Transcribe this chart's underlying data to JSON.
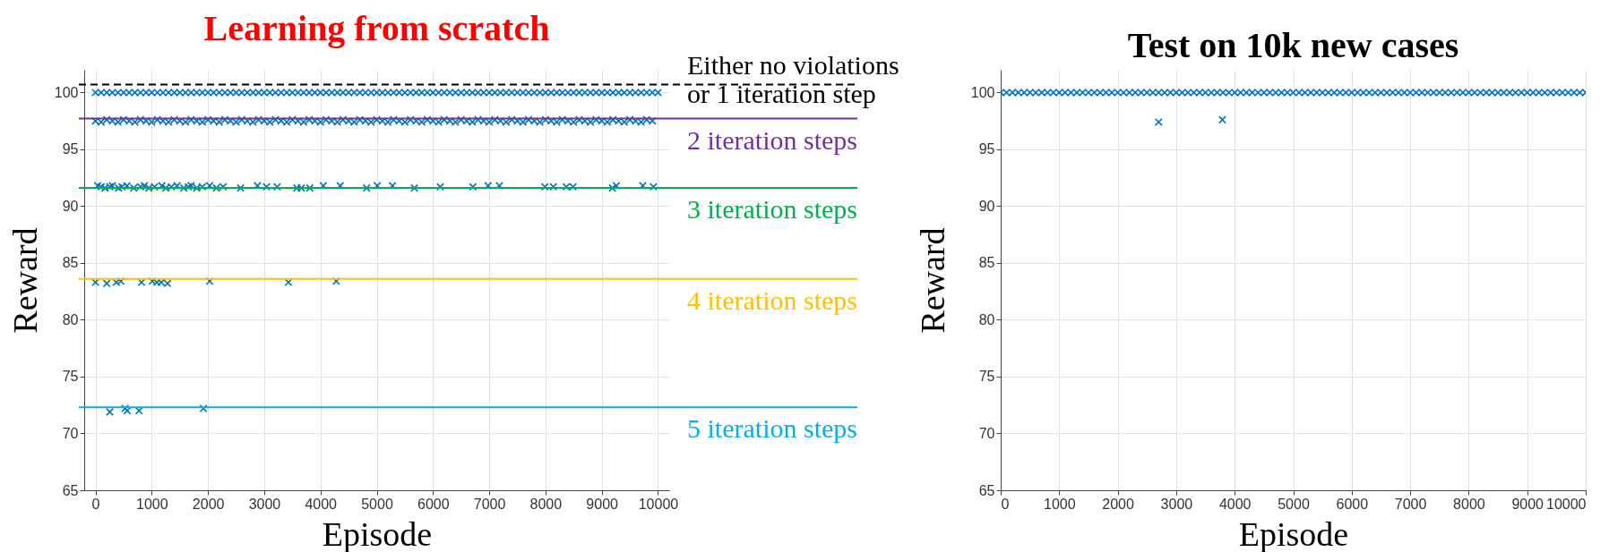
{
  "chart_data": [
    {
      "type": "scatter",
      "title": "Learning from scratch",
      "xlabel": "Episode",
      "ylabel": "Reward",
      "xlim": [
        -200,
        10200
      ],
      "ylim": [
        65,
        102
      ],
      "xticks": [
        0,
        1000,
        2000,
        3000,
        4000,
        5000,
        6000,
        7000,
        8000,
        9000,
        10000
      ],
      "yticks": [
        65,
        70,
        75,
        80,
        85,
        90,
        95,
        100
      ],
      "grid": true,
      "marker": "cross",
      "legend": false,
      "series": [
        {
          "color": "#0072bd",
          "x": [
            0,
            100,
            200,
            300,
            400,
            500,
            600,
            700,
            800,
            900,
            1000,
            1100,
            1200,
            1300,
            1400,
            1500,
            1600,
            1700,
            1800,
            1900,
            2000,
            2100,
            2200,
            2300,
            2400,
            2500,
            2600,
            2700,
            2800,
            2900,
            3000,
            3100,
            3200,
            3300,
            3400,
            3500,
            3600,
            3700,
            3800,
            3900,
            4000,
            4100,
            4200,
            4300,
            4400,
            4500,
            4600,
            4700,
            4800,
            4900,
            5000,
            5100,
            5200,
            5300,
            5400,
            5500,
            5600,
            5700,
            5800,
            5900,
            6000,
            6100,
            6200,
            6300,
            6400,
            6500,
            6600,
            6700,
            6800,
            6900,
            7000,
            7100,
            7200,
            7300,
            7400,
            7500,
            7600,
            7700,
            7800,
            7900,
            8000,
            8100,
            8200,
            8300,
            8400,
            8500,
            8600,
            8700,
            8800,
            8900,
            9000,
            9100,
            9200,
            9300,
            9400,
            9500,
            9600,
            9700,
            9800,
            9900,
            10000
          ],
          "values": [
            100,
            100,
            100,
            100,
            100,
            100,
            100,
            100,
            100,
            100,
            100,
            100,
            100,
            100,
            100,
            100,
            100,
            100,
            100,
            100,
            100,
            100,
            100,
            100,
            100,
            100,
            100,
            100,
            100,
            100,
            100,
            100,
            100,
            100,
            100,
            100,
            100,
            100,
            100,
            100,
            100,
            100,
            100,
            100,
            100,
            100,
            100,
            100,
            100,
            100,
            100,
            100,
            100,
            100,
            100,
            100,
            100,
            100,
            100,
            100,
            100,
            100,
            100,
            100,
            100,
            100,
            100,
            100,
            100,
            100,
            100,
            100,
            100,
            100,
            100,
            100,
            100,
            100,
            100,
            100,
            100,
            100,
            100,
            100,
            100,
            100,
            100,
            100,
            100,
            100,
            100,
            100,
            100,
            100,
            100,
            100,
            100,
            100,
            100,
            100,
            100
          ]
        },
        {
          "color": "#0072bd",
          "x": [
            0,
            100,
            200,
            300,
            400,
            500,
            600,
            700,
            800,
            900,
            1000,
            1100,
            1200,
            1300,
            1400,
            1500,
            1600,
            1700,
            1800,
            1900,
            2000,
            2100,
            2200,
            2300,
            2400,
            2500,
            2600,
            2700,
            2800,
            2900,
            3000,
            3100,
            3200,
            3300,
            3400,
            3500,
            3600,
            3700,
            3800,
            3900,
            4000,
            4100,
            4200,
            4300,
            4400,
            4500,
            4600,
            4700,
            4800,
            4900,
            5000,
            5100,
            5200,
            5300,
            5400,
            5500,
            5600,
            5700,
            5800,
            5900,
            6000,
            6100,
            6200,
            6300,
            6400,
            6500,
            6600,
            6700,
            6800,
            6900,
            7000,
            7100,
            7200,
            7300,
            7400,
            7500,
            7600,
            7700,
            7800,
            7900,
            8000,
            8100,
            8200,
            8300,
            8400,
            8500,
            8600,
            8700,
            8800,
            8900,
            9000,
            9100,
            9200,
            9300,
            9400,
            9500,
            9600,
            9700,
            9800,
            9900
          ],
          "values": [
            97.5,
            97.4,
            97.6,
            97.5,
            97.4,
            97.6,
            97.5,
            97.4,
            97.6,
            97.5,
            97.4,
            97.6,
            97.5,
            97.4,
            97.6,
            97.5,
            97.4,
            97.6,
            97.5,
            97.4,
            97.6,
            97.5,
            97.4,
            97.6,
            97.5,
            97.4,
            97.6,
            97.5,
            97.4,
            97.6,
            97.5,
            97.4,
            97.6,
            97.5,
            97.4,
            97.6,
            97.5,
            97.4,
            97.6,
            97.5,
            97.4,
            97.6,
            97.5,
            97.4,
            97.6,
            97.5,
            97.4,
            97.6,
            97.5,
            97.4,
            97.6,
            97.5,
            97.4,
            97.6,
            97.5,
            97.4,
            97.6,
            97.5,
            97.4,
            97.6,
            97.5,
            97.4,
            97.6,
            97.5,
            97.4,
            97.6,
            97.5,
            97.4,
            97.6,
            97.5,
            97.4,
            97.6,
            97.5,
            97.4,
            97.6,
            97.5,
            97.4,
            97.6,
            97.5,
            97.4,
            97.6,
            97.5,
            97.4,
            97.6,
            97.5,
            97.4,
            97.6,
            97.5,
            97.4,
            97.6,
            97.5,
            97.4,
            97.6,
            97.5,
            97.4,
            97.6,
            97.5,
            97.4,
            97.6,
            97.5
          ]
        },
        {
          "color": "#0072bd",
          "x": [
            40,
            100,
            170,
            255,
            300,
            410,
            470,
            560,
            680,
            800,
            870,
            950,
            1050,
            1180,
            1250,
            1350,
            1450,
            1570,
            1650,
            1700,
            1800,
            1900,
            2030,
            2150,
            2270,
            2580,
            2880,
            3040,
            3230,
            3580,
            3660,
            3810,
            4050,
            4350,
            4820,
            5010,
            5280,
            5670,
            6130,
            6710,
            6980,
            7180,
            7990,
            8140,
            8370,
            8490,
            9190,
            9260,
            9730,
            9920
          ],
          "values": [
            91.8,
            91.7,
            91.6,
            91.7,
            91.8,
            91.6,
            91.7,
            91.8,
            91.6,
            91.7,
            91.8,
            91.6,
            91.7,
            91.8,
            91.6,
            91.7,
            91.8,
            91.6,
            91.7,
            91.8,
            91.6,
            91.7,
            91.8,
            91.6,
            91.7,
            91.6,
            91.8,
            91.7,
            91.7,
            91.6,
            91.6,
            91.6,
            91.8,
            91.8,
            91.6,
            91.8,
            91.8,
            91.6,
            91.7,
            91.7,
            91.8,
            91.8,
            91.7,
            91.7,
            91.7,
            91.7,
            91.6,
            91.8,
            91.8,
            91.7
          ]
        },
        {
          "color": "#0072bd",
          "x": [
            0,
            200,
            370,
            450,
            820,
            1010,
            1090,
            1170,
            1280,
            2030,
            3430,
            4280
          ],
          "values": [
            83.3,
            83.2,
            83.3,
            83.4,
            83.3,
            83.4,
            83.3,
            83.3,
            83.2,
            83.4,
            83.3,
            83.4
          ]
        },
        {
          "color": "#0072bd",
          "x": [
            255,
            525,
            565,
            775,
            1920
          ],
          "values": [
            71.9,
            72.2,
            72.0,
            72.0,
            72.2
          ]
        }
      ],
      "ref_lines": [
        {
          "axis": "y",
          "value": 100.7,
          "label": "Either no violations\nor 1 iteration step",
          "color": "#000000",
          "line_style": "dashed"
        },
        {
          "axis": "y",
          "value": 97.7,
          "label": "2 iteration steps",
          "color": "#7030a0",
          "line_style": "solid"
        },
        {
          "axis": "y",
          "value": 91.6,
          "label": "3 iteration steps",
          "color": "#00b050",
          "line_style": "solid"
        },
        {
          "axis": "y",
          "value": 83.6,
          "label": "4 iteration steps",
          "color": "#ffc000",
          "line_style": "solid"
        },
        {
          "axis": "y",
          "value": 72.3,
          "label": "5 iteration steps",
          "color": "#00b0f0",
          "line_style": "solid"
        }
      ]
    },
    {
      "type": "scatter",
      "title": "Test on 10k new cases",
      "xlabel": "Episode",
      "ylabel": "Reward",
      "xlim": [
        0,
        10000
      ],
      "ylim": [
        65,
        102
      ],
      "xticks": [
        0,
        1000,
        2000,
        3000,
        4000,
        5000,
        6000,
        7000,
        8000,
        9000,
        10000
      ],
      "yticks": [
        65,
        70,
        75,
        80,
        85,
        90,
        95,
        100
      ],
      "grid": true,
      "marker": "cross",
      "legend": false,
      "series": [
        {
          "color": "#0072bd",
          "x": [
            0,
            100,
            200,
            300,
            400,
            500,
            600,
            700,
            800,
            900,
            1000,
            1100,
            1200,
            1300,
            1400,
            1500,
            1600,
            1700,
            1800,
            1900,
            2000,
            2100,
            2200,
            2300,
            2400,
            2500,
            2600,
            2700,
            2800,
            2900,
            3000,
            3100,
            3200,
            3300,
            3400,
            3500,
            3600,
            3700,
            3800,
            3900,
            4000,
            4100,
            4200,
            4300,
            4400,
            4500,
            4600,
            4700,
            4800,
            4900,
            5000,
            5100,
            5200,
            5300,
            5400,
            5500,
            5600,
            5700,
            5800,
            5900,
            6000,
            6100,
            6200,
            6300,
            6400,
            6500,
            6600,
            6700,
            6800,
            6900,
            7000,
            7100,
            7200,
            7300,
            7400,
            7500,
            7600,
            7700,
            7800,
            7900,
            8000,
            8100,
            8200,
            8300,
            8400,
            8500,
            8600,
            8700,
            8800,
            8900,
            9000,
            9100,
            9200,
            9300,
            9400,
            9500,
            9600,
            9700,
            9800,
            9900,
            10000
          ],
          "values": [
            100,
            100,
            100,
            100,
            100,
            100,
            100,
            100,
            100,
            100,
            100,
            100,
            100,
            100,
            100,
            100,
            100,
            100,
            100,
            100,
            100,
            100,
            100,
            100,
            100,
            100,
            100,
            100,
            100,
            100,
            100,
            100,
            100,
            100,
            100,
            100,
            100,
            100,
            100,
            100,
            100,
            100,
            100,
            100,
            100,
            100,
            100,
            100,
            100,
            100,
            100,
            100,
            100,
            100,
            100,
            100,
            100,
            100,
            100,
            100,
            100,
            100,
            100,
            100,
            100,
            100,
            100,
            100,
            100,
            100,
            100,
            100,
            100,
            100,
            100,
            100,
            100,
            100,
            100,
            100,
            100,
            100,
            100,
            100,
            100,
            100,
            100,
            100,
            100,
            100,
            100,
            100,
            100,
            100,
            100,
            100,
            100,
            100,
            100,
            100,
            100
          ]
        },
        {
          "color": "#0072bd",
          "x": [
            2700,
            3790
          ],
          "values": [
            97.4,
            97.6
          ]
        }
      ]
    }
  ]
}
